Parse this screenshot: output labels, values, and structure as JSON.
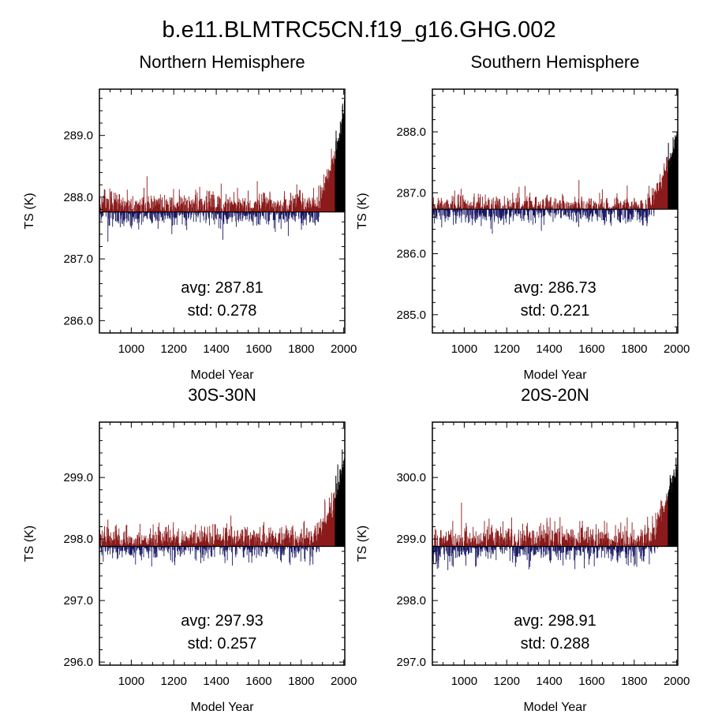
{
  "title": "b.e11.BLMTRC5CN.f19_g16.GHG.002",
  "chart_data": [
    {
      "type": "line",
      "title": "Northern Hemisphere",
      "xlabel": "Model Year",
      "ylabel": "TS (K)",
      "xlim": [
        850,
        2005
      ],
      "ylim": [
        285.8,
        289.75
      ],
      "xticks": [
        1000,
        1200,
        1400,
        1600,
        1800,
        2000
      ],
      "xtick_labels": [
        "1000",
        "1200",
        "1400",
        "1600",
        "1800",
        "2000"
      ],
      "yticks": [
        286.0,
        287.0,
        288.0,
        289.0
      ],
      "ytick_labels": [
        "286.0",
        "287.0",
        "288.0",
        "289.0"
      ],
      "mean": 287.81,
      "std": 0.278,
      "baseline": 287.76,
      "end_max": 289.6,
      "years": [
        850,
        2005
      ],
      "colors": {
        "above": "#8b1a1a",
        "below": "#1a1a66",
        "end": "#000000"
      },
      "stats_text": {
        "avg": "avg: 287.81",
        "std": "std:  0.278"
      }
    },
    {
      "type": "line",
      "title": "Southern Hemisphere",
      "xlabel": "Model Year",
      "ylabel": "TS (K)",
      "xlim": [
        850,
        2005
      ],
      "ylim": [
        284.7,
        288.7
      ],
      "xticks": [
        1000,
        1200,
        1400,
        1600,
        1800,
        2000
      ],
      "xtick_labels": [
        "1000",
        "1200",
        "1400",
        "1600",
        "1800",
        "2000"
      ],
      "yticks": [
        285.0,
        286.0,
        287.0,
        288.0
      ],
      "ytick_labels": [
        "285.0",
        "286.0",
        "287.0",
        "288.0"
      ],
      "mean": 286.73,
      "std": 0.221,
      "baseline": 286.73,
      "end_max": 288.2,
      "years": [
        850,
        2005
      ],
      "colors": {
        "above": "#8b1a1a",
        "below": "#1a1a66",
        "end": "#000000"
      },
      "stats_text": {
        "avg": "avg: 286.73",
        "std": "std:  0.221"
      }
    },
    {
      "type": "line",
      "title": "30S-30N",
      "xlabel": "Model Year",
      "ylabel": "TS (K)",
      "xlim": [
        850,
        2005
      ],
      "ylim": [
        295.95,
        299.9
      ],
      "xticks": [
        1000,
        1200,
        1400,
        1600,
        1800,
        2000
      ],
      "xtick_labels": [
        "1000",
        "1200",
        "1400",
        "1600",
        "1800",
        "2000"
      ],
      "yticks": [
        296.0,
        297.0,
        298.0,
        299.0
      ],
      "ytick_labels": [
        "296.0",
        "297.0",
        "298.0",
        "299.0"
      ],
      "mean": 297.93,
      "std": 0.257,
      "baseline": 297.88,
      "end_max": 299.4,
      "years": [
        850,
        2005
      ],
      "colors": {
        "above": "#8b1a1a",
        "below": "#1a1a66",
        "end": "#000000"
      },
      "stats_text": {
        "avg": "avg: 297.93",
        "std": "std:  0.257"
      }
    },
    {
      "type": "line",
      "title": "20S-20N",
      "xlabel": "Model Year",
      "ylabel": "TS (K)",
      "xlim": [
        850,
        2005
      ],
      "ylim": [
        296.95,
        300.9
      ],
      "xticks": [
        1000,
        1200,
        1400,
        1600,
        1800,
        2000
      ],
      "xtick_labels": [
        "1000",
        "1200",
        "1400",
        "1600",
        "1800",
        "2000"
      ],
      "yticks": [
        297.0,
        298.0,
        299.0,
        300.0
      ],
      "ytick_labels": [
        "297.0",
        "298.0",
        "299.0",
        "300.0"
      ],
      "mean": 298.91,
      "std": 0.288,
      "baseline": 298.88,
      "end_max": 300.4,
      "years": [
        850,
        2005
      ],
      "colors": {
        "above": "#8b1a1a",
        "below": "#1a1a66",
        "end": "#000000"
      },
      "stats_text": {
        "avg": "avg: 298.91",
        "std": "std:  0.288"
      }
    }
  ]
}
